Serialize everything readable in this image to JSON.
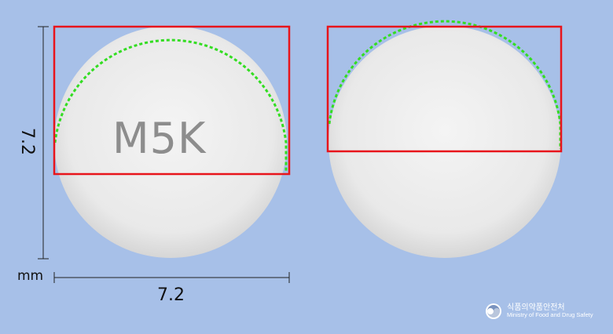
{
  "dimensions": {
    "height_value": "7.2",
    "width_value": "7.2",
    "unit": "mm"
  },
  "pill": {
    "imprint_front": "M5K",
    "color": "#ececec"
  },
  "colors": {
    "background": "#a7c0e8",
    "bounding_box": "#e8141b",
    "contour": "#33dd22"
  },
  "logo": {
    "korean_name": "식품의약품안전처",
    "english_name": "Ministry of Food and Drug Safety",
    "icon": "taegeuk-emblem-icon"
  }
}
